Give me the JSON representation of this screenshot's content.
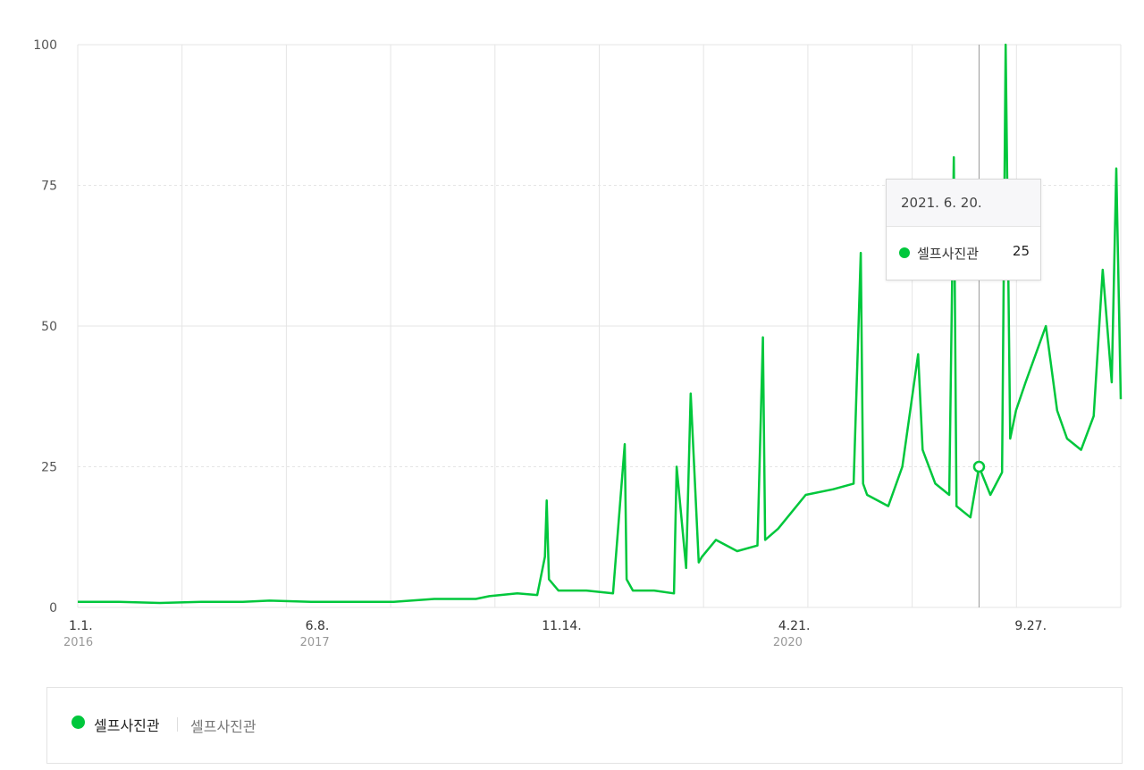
{
  "colors": {
    "series": "#00c73c",
    "grid": "#e5e5e5",
    "cursor": "#999999"
  },
  "chart_data": {
    "type": "line",
    "title": "",
    "xlabel": "",
    "ylabel": "",
    "ylim": [
      0,
      100
    ],
    "xlim": [
      "2016-01-01",
      "2022-04-30"
    ],
    "grid": true,
    "y_ticks": [
      "0",
      "25",
      "50",
      "75",
      "100"
    ],
    "x_ticks": [
      {
        "date": "2016-01-01",
        "label": "1.1.",
        "year": "2016"
      },
      {
        "date": "2017-06-08",
        "label": "6.8.",
        "year": "2017"
      },
      {
        "date": "2018-11-14",
        "label": "11.14.",
        "year": ""
      },
      {
        "date": "2020-04-21",
        "label": "4.21.",
        "year": "2020"
      },
      {
        "date": "2021-09-27",
        "label": "9.27.",
        "year": ""
      }
    ],
    "series": [
      {
        "name": "셀프사진관",
        "x": [
          "2016-01-01",
          "2016-04-01",
          "2016-07-01",
          "2016-10-01",
          "2017-01-01",
          "2017-03-01",
          "2017-06-01",
          "2017-09-01",
          "2017-12-01",
          "2018-03-01",
          "2018-05-01",
          "2018-06-01",
          "2018-07-01",
          "2018-09-01",
          "2018-10-15",
          "2018-11-01",
          "2018-11-05",
          "2018-11-10",
          "2018-12-01",
          "2019-02-01",
          "2019-04-01",
          "2019-04-27",
          "2019-05-01",
          "2019-05-15",
          "2019-07-01",
          "2019-08-14",
          "2019-08-20",
          "2019-09-10",
          "2019-09-20",
          "2019-10-08",
          "2019-10-15",
          "2019-11-15",
          "2020-01-01",
          "2020-02-15",
          "2020-02-27",
          "2020-03-03",
          "2020-04-01",
          "2020-06-01",
          "2020-08-01",
          "2020-09-15",
          "2020-10-01",
          "2020-10-06",
          "2020-10-15",
          "2020-12-01",
          "2021-01-01",
          "2021-02-05",
          "2021-02-15",
          "2021-03-15",
          "2021-04-15",
          "2021-04-25",
          "2021-05-01",
          "2021-06-01",
          "2021-06-20",
          "2021-07-15",
          "2021-08-10",
          "2021-08-18",
          "2021-08-28",
          "2021-09-10",
          "2021-10-01",
          "2021-11-15",
          "2021-12-10",
          "2022-01-01",
          "2022-02-01",
          "2022-03-01",
          "2022-03-21",
          "2022-04-10",
          "2022-04-20",
          "2022-04-30"
        ],
        "values": [
          1,
          1,
          0.8,
          1,
          1,
          1.2,
          1,
          1,
          1,
          1.5,
          1.5,
          1.5,
          2,
          2.5,
          2.2,
          9,
          19,
          5,
          3,
          3,
          2.5,
          29,
          5,
          3,
          3,
          2.5,
          25,
          7,
          38,
          8,
          9,
          12,
          10,
          11,
          48,
          12,
          14,
          20,
          21,
          22,
          63,
          22,
          20,
          18,
          25,
          45,
          28,
          22,
          20,
          80,
          18,
          16,
          25,
          20,
          24,
          100,
          30,
          35,
          40,
          50,
          35,
          30,
          28,
          34,
          60,
          40,
          78,
          37
        ]
      }
    ],
    "highlight": {
      "date": "2021-06-20",
      "value": 25
    }
  },
  "tooltip": {
    "date": "2021. 6. 20.",
    "series_name": "셀프사진관",
    "value": "25"
  },
  "legend": {
    "series_name": "셀프사진관",
    "keyword": "셀프사진관"
  }
}
